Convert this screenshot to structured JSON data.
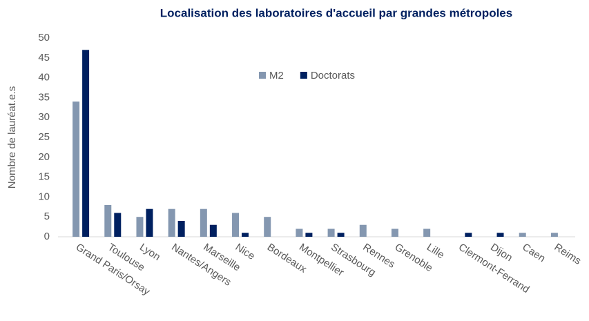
{
  "chart_data": {
    "type": "bar",
    "title": "Localisation des laboratoires d'accueil par grandes métropoles",
    "y_label": "Nombre de lauréat.e.s",
    "categories": [
      "Grand Paris/Orsay",
      "Toulouse",
      "Lyon",
      "Nantes/Angers",
      "Marseille",
      "Nice",
      "Bordeaux",
      "Montpellier",
      "Strasbourg",
      "Rennes",
      "Grenoble",
      "Lille",
      "Clermont-Ferrand",
      "Dijon",
      "Caen",
      "Reims"
    ],
    "series": [
      {
        "name": "M2",
        "color": "#8497b0",
        "values": [
          34,
          8,
          5,
          7,
          7,
          6,
          5,
          2,
          2,
          3,
          2,
          2,
          0,
          0,
          1,
          1
        ]
      },
      {
        "name": "Doctorats",
        "color": "#002060",
        "values": [
          47,
          6,
          7,
          4,
          3,
          1,
          0,
          1,
          1,
          0,
          0,
          0,
          1,
          1,
          0,
          0
        ]
      }
    ],
    "ylim": [
      0,
      50
    ],
    "yticks": [
      0,
      5,
      10,
      15,
      20,
      25,
      30,
      35,
      40,
      45,
      50
    ],
    "grid": false,
    "legend": "top"
  }
}
